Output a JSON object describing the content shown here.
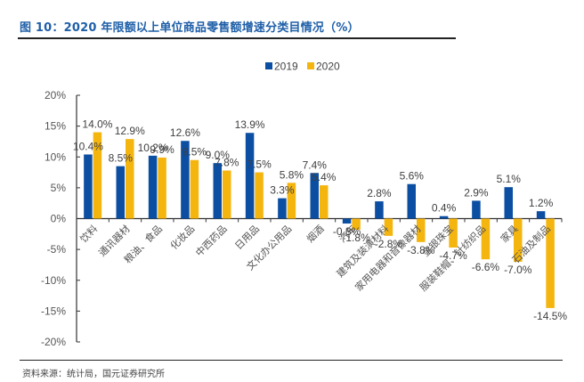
{
  "header": {
    "title": "图 10：2020 年限额以上单位商品零售额增速分类目情况（%）"
  },
  "footer": {
    "source": "资料来源：统计局，国元证券研究所"
  },
  "colors": {
    "series_2019": "#0b4ea2",
    "series_2020": "#f5b50f",
    "title": "#1f5fa8",
    "axis": "#333333",
    "label": "#404040"
  },
  "chart_data": {
    "type": "bar",
    "title": "2020 年限额以上单位商品零售额增速分类目情况（%）",
    "xlabel": "",
    "ylabel": "",
    "ylim": [
      -20,
      20
    ],
    "yticks": [
      20,
      15,
      10,
      5,
      0,
      -5,
      -10,
      -15,
      -20
    ],
    "ytick_labels": [
      "20%",
      "15%",
      "10%",
      "5%",
      "0%",
      "-5%",
      "-10%",
      "-15%",
      "-20%"
    ],
    "grid": false,
    "legend_position": "top-center",
    "categories": [
      "饮料",
      "通讯器材",
      "粮油、食品",
      "化妆品",
      "中西药品",
      "日用品",
      "文化办公用品",
      "烟酒",
      "汽车",
      "建筑及装潢材料",
      "家用电器和音像器材",
      "金银珠宝",
      "服装鞋帽、针纺织品",
      "家具",
      "石油及制品"
    ],
    "series": [
      {
        "name": "2019",
        "values": [
          10.4,
          8.5,
          10.2,
          12.6,
          9.0,
          13.9,
          3.3,
          7.4,
          -0.8,
          2.8,
          5.6,
          0.4,
          2.9,
          5.1,
          1.2
        ]
      },
      {
        "name": "2020",
        "values": [
          14.0,
          12.9,
          9.9,
          9.5,
          7.8,
          7.5,
          5.8,
          5.4,
          -1.8,
          -2.8,
          -3.8,
          -4.7,
          -6.6,
          -7.0,
          -14.5
        ]
      }
    ],
    "value_format": "{v}%"
  }
}
